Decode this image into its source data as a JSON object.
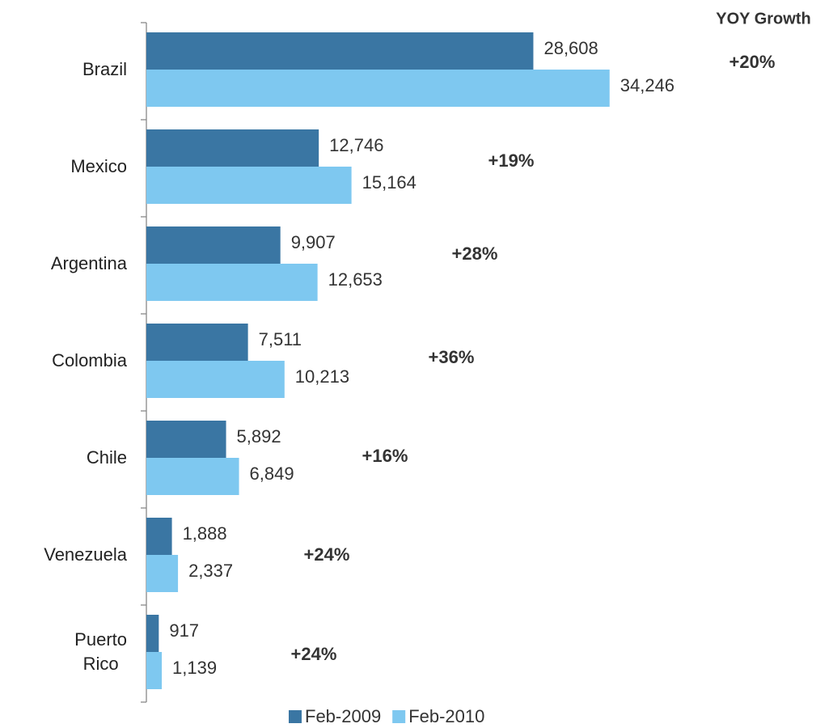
{
  "chart_data": {
    "type": "bar",
    "orientation": "horizontal",
    "categories": [
      "Brazil",
      "Mexico",
      "Argentina",
      "Colombia",
      "Chile",
      "Venezuela",
      "Puerto\nRico"
    ],
    "series": [
      {
        "name": "Feb-2009",
        "color": "#3a76a3",
        "values": [
          28608,
          12746,
          9907,
          7511,
          5892,
          1888,
          917
        ],
        "value_labels": [
          "28,608",
          "12,746",
          "9,907",
          "7,511",
          "5,892",
          "1,888",
          "917"
        ]
      },
      {
        "name": "Feb-2010",
        "color": "#7ec8f0",
        "values": [
          34246,
          15164,
          12653,
          10213,
          6849,
          2337,
          1139
        ],
        "value_labels": [
          "34,246",
          "15,164",
          "12,653",
          "10,213",
          "6,849",
          "2,337",
          "1,139"
        ]
      }
    ],
    "xlim": [
      0,
      40000
    ],
    "annotation_title": "YOY Growth",
    "annotations": [
      "+20%",
      "+19%",
      "+28%",
      "+36%",
      "+16%",
      "+24%",
      "+24%"
    ],
    "annotation_color": "#3d7aa8",
    "legend": "bottom"
  }
}
